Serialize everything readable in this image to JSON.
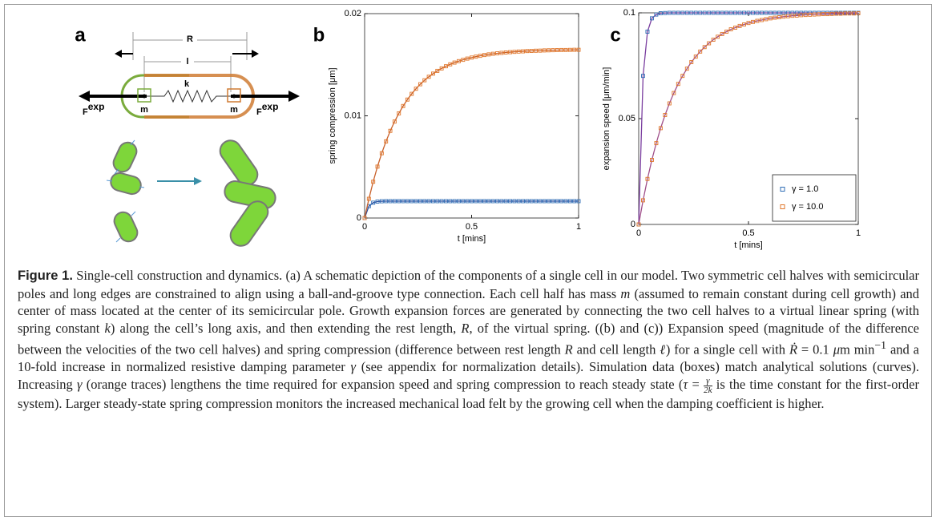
{
  "panel_a": {
    "label": "a",
    "dim_outer": "R",
    "dim_inner": "l",
    "spring": "k",
    "mass_left": "m",
    "mass_right": "m",
    "force_left": {
      "base": "F",
      "sup": "exp"
    },
    "force_right": {
      "base": "F",
      "sup": "exp"
    }
  },
  "chart_data": [
    {
      "type": "line",
      "panel_label": "b",
      "ylabel": "spring compression [μm]",
      "xlabel": "t [mins]",
      "xlim": [
        0,
        1
      ],
      "xticks": [
        0,
        0.5,
        1
      ],
      "ylim": [
        0,
        0.02
      ],
      "yticks": [
        0,
        0.01,
        0.02
      ],
      "markers": "square",
      "x": [
        0,
        0.02,
        0.04,
        0.06,
        0.08,
        0.1,
        0.12,
        0.14,
        0.16,
        0.18,
        0.2,
        0.22,
        0.24,
        0.26,
        0.28,
        0.3,
        0.32,
        0.34,
        0.36,
        0.38,
        0.4,
        0.42,
        0.44,
        0.46,
        0.48,
        0.5,
        0.52,
        0.54,
        0.56,
        0.58,
        0.6,
        0.62,
        0.64,
        0.66,
        0.68,
        0.7,
        0.72,
        0.74,
        0.76,
        0.78,
        0.8,
        0.82,
        0.84,
        0.86,
        0.88,
        0.9,
        0.92,
        0.94,
        0.96,
        0.98,
        1
      ],
      "series": [
        {
          "color": "#2f6db5",
          "line_color": "#2b4a9c",
          "values": [
            0,
            0.00116,
            0.0015,
            0.00161,
            0.00164,
            0.00165,
            0.00165,
            0.00165,
            0.00165,
            0.00165,
            0.00165,
            0.00165,
            0.00165,
            0.00165,
            0.00165,
            0.00165,
            0.00165,
            0.00165,
            0.00165,
            0.00165,
            0.00165,
            0.00165,
            0.00165,
            0.00165,
            0.00165,
            0.00165,
            0.00165,
            0.00165,
            0.00165,
            0.00165,
            0.00165,
            0.00165,
            0.00165,
            0.00165,
            0.00165,
            0.00165,
            0.00165,
            0.00165,
            0.00165,
            0.00165,
            0.00165,
            0.00165,
            0.00165,
            0.00165,
            0.00165,
            0.00165,
            0.00165,
            0.00165,
            0.00165,
            0.00165,
            0.00165
          ]
        },
        {
          "color": "#e0762a",
          "line_color": "#c8602a",
          "values": [
            0,
            0.00188,
            0.00355,
            0.00503,
            0.00634,
            0.0075,
            0.00853,
            0.00944,
            0.01024,
            0.01096,
            0.01159,
            0.01215,
            0.01265,
            0.01309,
            0.01348,
            0.01382,
            0.01413,
            0.0144,
            0.01464,
            0.01485,
            0.01504,
            0.01521,
            0.01535,
            0.01548,
            0.0156,
            0.0157,
            0.01579,
            0.01587,
            0.01595,
            0.01601,
            0.01607,
            0.01612,
            0.01616,
            0.0162,
            0.01623,
            0.01626,
            0.01629,
            0.01631,
            0.01634,
            0.01635,
            0.01637,
            0.01638,
            0.0164,
            0.01641,
            0.01642,
            0.01643,
            0.01644,
            0.01644,
            0.01645,
            0.01646,
            0.01646
          ]
        }
      ]
    },
    {
      "type": "line",
      "panel_label": "c",
      "ylabel": "expansion speed [μm/min]",
      "xlabel": "t [mins]",
      "xlim": [
        0,
        1
      ],
      "xticks": [
        0,
        0.5,
        1
      ],
      "ylim": [
        0,
        0.1
      ],
      "yticks": [
        0,
        0.05,
        0.1
      ],
      "markers": "square",
      "legend": "lower right",
      "x": [
        0,
        0.02,
        0.04,
        0.06,
        0.08,
        0.1,
        0.12,
        0.14,
        0.16,
        0.18,
        0.2,
        0.22,
        0.24,
        0.26,
        0.28,
        0.3,
        0.32,
        0.34,
        0.36,
        0.38,
        0.4,
        0.42,
        0.44,
        0.46,
        0.48,
        0.5,
        0.52,
        0.54,
        0.56,
        0.58,
        0.6,
        0.62,
        0.64,
        0.66,
        0.68,
        0.7,
        0.72,
        0.74,
        0.76,
        0.78,
        0.8,
        0.82,
        0.84,
        0.86,
        0.88,
        0.9,
        0.92,
        0.94,
        0.96,
        0.98,
        1
      ],
      "series": [
        {
          "name": "γ = 1.0",
          "color": "#2f6db5",
          "line_color": "#7b3fa0",
          "values": [
            0,
            0.0702,
            0.0911,
            0.0974,
            0.0992,
            0.0998,
            0.0999,
            0.1,
            0.1,
            0.1,
            0.1,
            0.1,
            0.1,
            0.1,
            0.1,
            0.1,
            0.1,
            0.1,
            0.1,
            0.1,
            0.1,
            0.1,
            0.1,
            0.1,
            0.1,
            0.1,
            0.1,
            0.1,
            0.1,
            0.1,
            0.1,
            0.1,
            0.1,
            0.1,
            0.1,
            0.1,
            0.1,
            0.1,
            0.1,
            0.1,
            0.1,
            0.1,
            0.1,
            0.1,
            0.1,
            0.1,
            0.1,
            0.1,
            0.1,
            0.1,
            0.1
          ]
        },
        {
          "name": "γ = 10.0",
          "color": "#e0762a",
          "line_color": "#a04f8a",
          "values": [
            0,
            0.0114,
            0.0215,
            0.0305,
            0.0384,
            0.0455,
            0.0517,
            0.0572,
            0.0621,
            0.0664,
            0.0702,
            0.0736,
            0.0767,
            0.0793,
            0.0817,
            0.0838,
            0.0856,
            0.0873,
            0.0887,
            0.09,
            0.0911,
            0.0922,
            0.093,
            0.0938,
            0.0945,
            0.0952,
            0.0957,
            0.0962,
            0.0966,
            0.097,
            0.0974,
            0.0977,
            0.0979,
            0.0982,
            0.0984,
            0.0986,
            0.0987,
            0.0989,
            0.099,
            0.0991,
            0.0992,
            0.0993,
            0.0994,
            0.0994,
            0.0995,
            0.0996,
            0.0996,
            0.0997,
            0.0997,
            0.0997,
            0.0998
          ]
        }
      ]
    }
  ],
  "caption": {
    "label": "Figure 1.",
    "runs": [
      {
        "text": " Single-cell construction and dynamics. (a) A schematic depiction of the components of a single cell in our model. Two symmetric cell halves with semicircular poles and long edges are constrained to align using a ball-and-groove type connection. Each cell half has mass "
      },
      {
        "text": "m",
        "style": "italic"
      },
      {
        "text": " (assumed to remain constant during cell growth) and center of mass located at the center of its semicircular pole. Growth expansion forces are generated by connecting the two cell halves to a virtual linear spring (with spring constant "
      },
      {
        "text": "k",
        "style": "italic"
      },
      {
        "text": ") along the cell’s long axis, and then extending the rest length, "
      },
      {
        "text": "R",
        "style": "italic"
      },
      {
        "text": ", of the virtual spring. ((b) and (c)) Expansion speed (magnitude of the difference between the velocities of the two cell halves) and spring compression (difference between rest length "
      },
      {
        "text": "R",
        "style": "italic"
      },
      {
        "text": " and cell length "
      },
      {
        "text": "ℓ",
        "style": "italic"
      },
      {
        "text": ") for a single cell with "
      },
      {
        "text": "Ṙ",
        "style": "italic"
      },
      {
        "text": " = 0.1 "
      },
      {
        "text": "μ",
        "style": "italic"
      },
      {
        "text": "m min"
      },
      {
        "text": "−1",
        "style": "sup"
      },
      {
        "text": " and a 10-fold increase in normalized resistive damping parameter "
      },
      {
        "text": "γ",
        "style": "italic"
      },
      {
        "text": " (see appendix for normalization details). Simulation data (boxes) match analytical solutions (curves). Increasing "
      },
      {
        "text": "γ",
        "style": "italic"
      },
      {
        "text": " (orange traces) lengthens the time required for expansion speed and spring compression to reach steady state ("
      },
      {
        "text": "τ",
        "style": "italic"
      },
      {
        "text": " = "
      },
      {
        "num": "γ",
        "den": "2k"
      },
      {
        "text": " is the time constant for the first-order system). Larger steady-state spring compression monitors the increased mechanical load felt by the growing cell when the damping coefficient is higher."
      }
    ]
  }
}
